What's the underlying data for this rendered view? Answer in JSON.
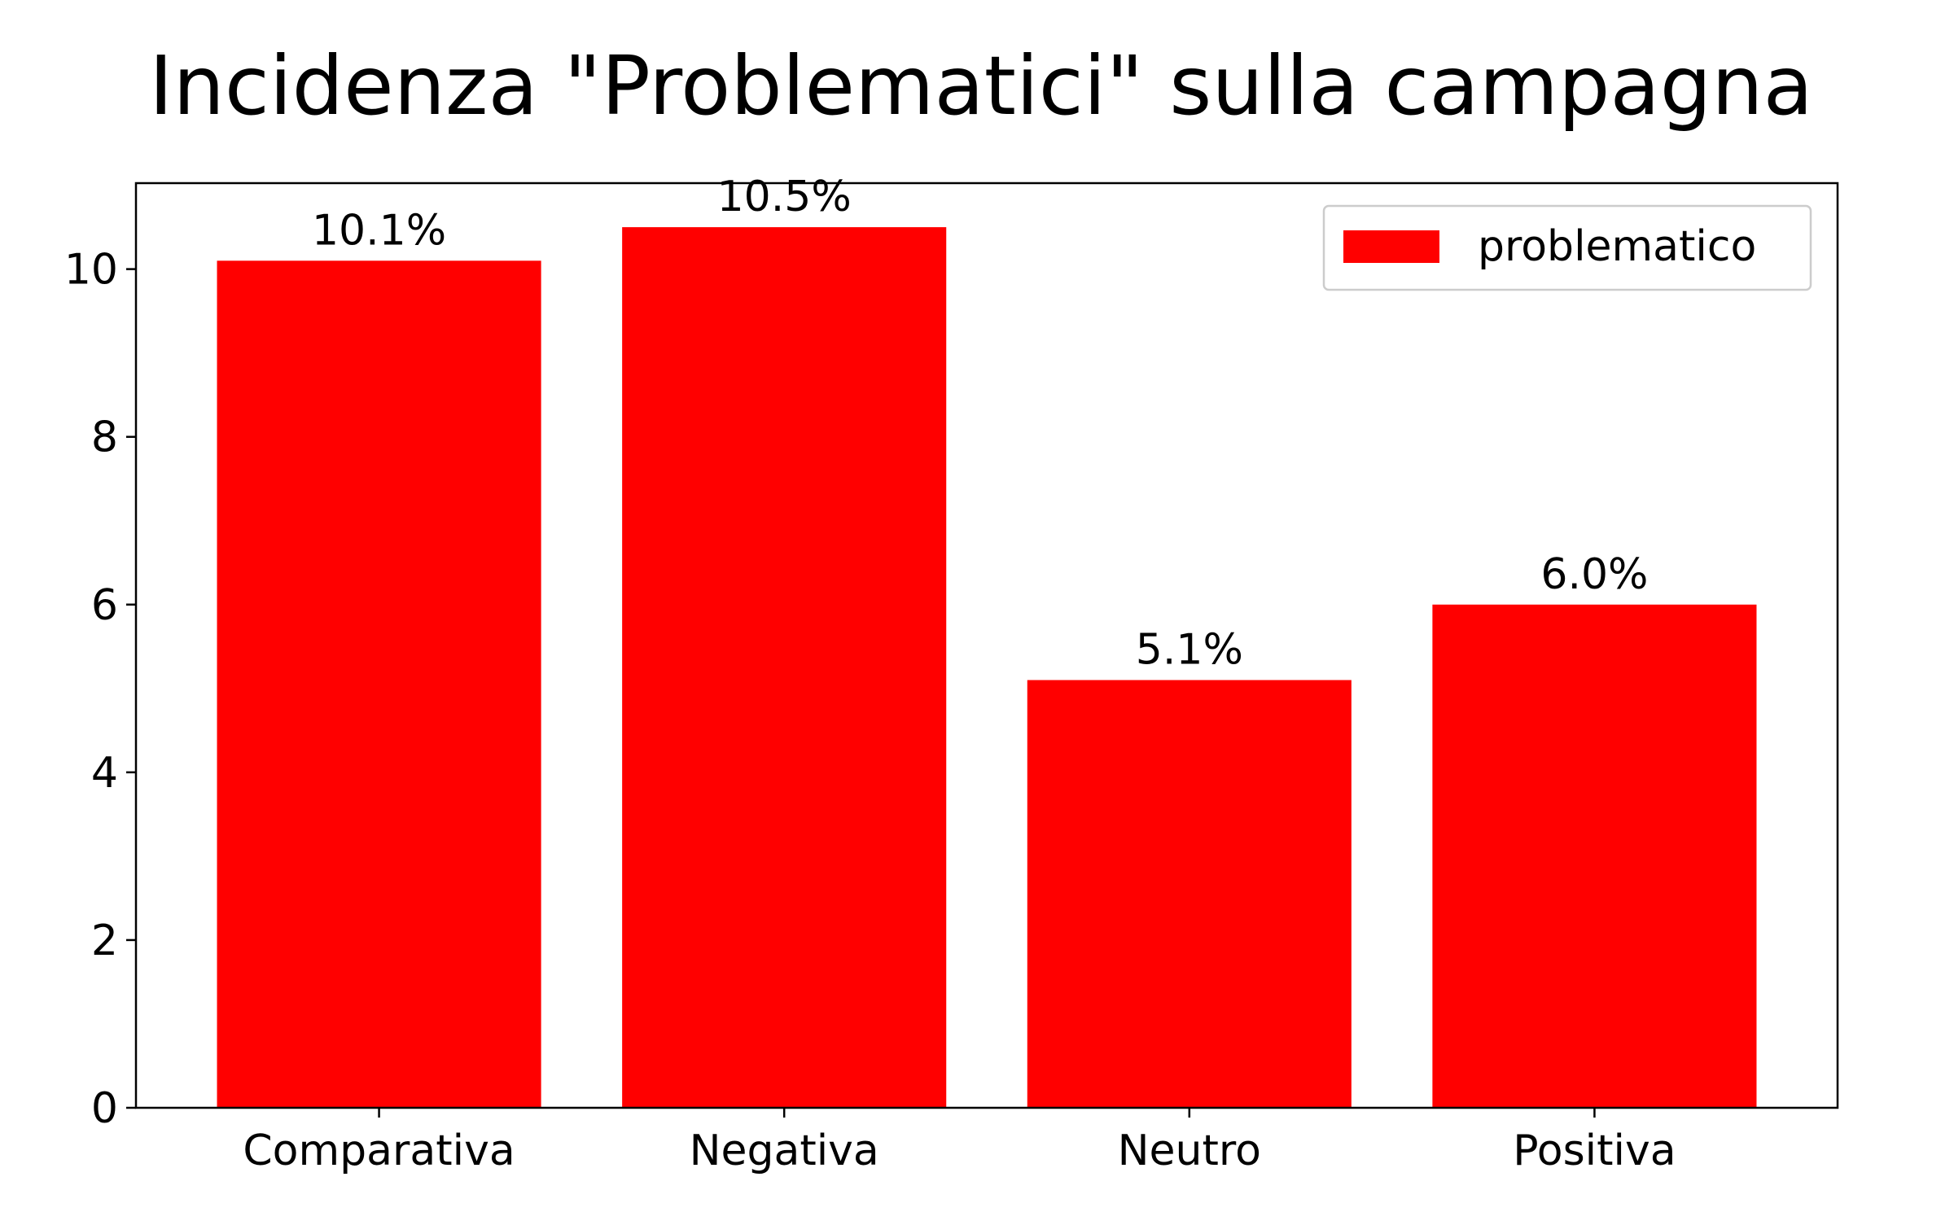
{
  "chart_data": {
    "type": "bar",
    "title": "Incidenza \"Problematici\" sulla campagna",
    "xlabel": "",
    "ylabel": "",
    "categories": [
      "Comparativa",
      "Negativa",
      "Neutro",
      "Positiva"
    ],
    "series": [
      {
        "name": "problematico",
        "color": "#ff0000",
        "values": [
          10.1,
          10.5,
          5.1,
          6.0
        ],
        "labels": [
          "10.1%",
          "10.5%",
          "5.1%",
          "6.0%"
        ]
      }
    ],
    "ylim": [
      0,
      11.025
    ],
    "yticks": [
      0,
      2,
      4,
      6,
      8,
      10
    ],
    "grid": false,
    "legend_position": "top-right"
  }
}
